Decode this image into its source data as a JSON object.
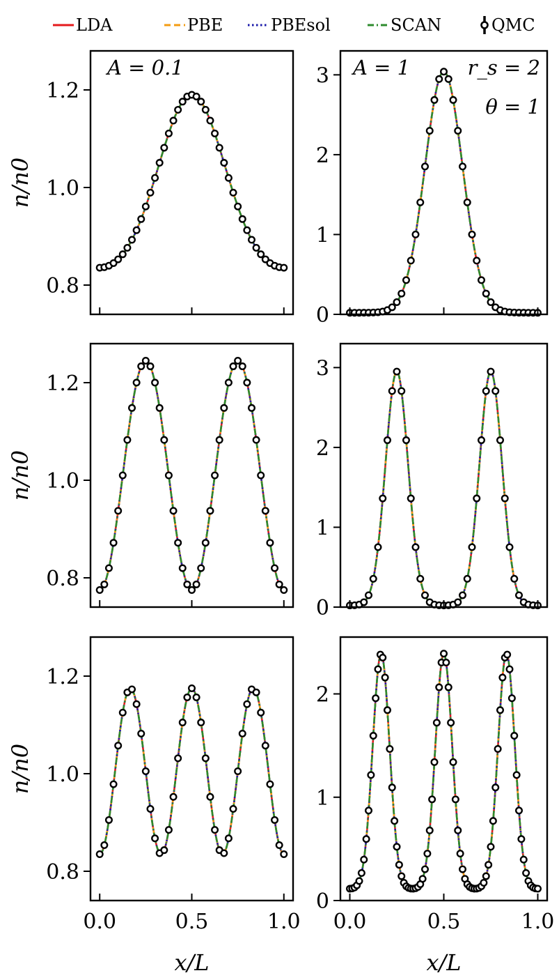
{
  "chart_data": {
    "type": "line",
    "legend": {
      "placement": "top",
      "entries": [
        {
          "label": "LDA",
          "style": "solid",
          "color": "#e41a1c"
        },
        {
          "label": "PBE",
          "style": "dashed",
          "color": "#f39c12"
        },
        {
          "label": "PBEsol",
          "style": "dotted",
          "color": "#1a1aaa"
        },
        {
          "label": "SCAN",
          "style": "dashdot",
          "color": "#2e8b2e"
        },
        {
          "label": "QMC",
          "style": "markers",
          "color": "#000000"
        }
      ]
    },
    "x_axis_label": "x/L",
    "y_axis_label": "n/n0",
    "panels": [
      {
        "row": 0,
        "col": 0,
        "model": "gauss",
        "n": 1,
        "amp": 0.37,
        "base": 0.82,
        "width": 0.18,
        "xlim": [
          0,
          1
        ],
        "ylim": [
          0.74,
          1.28
        ],
        "yticks": [
          0.8,
          1.0,
          1.2
        ],
        "ytick_labels": [
          "0.8",
          "1.0",
          "1.2"
        ],
        "annotations": [
          "A = 0.1"
        ],
        "qmc_points": 41
      },
      {
        "row": 0,
        "col": 1,
        "model": "gauss",
        "n": 1,
        "amp": 3.02,
        "base": 0.02,
        "width": 0.1,
        "xlim": [
          0,
          1
        ],
        "ylim": [
          0,
          3.3
        ],
        "yticks": [
          0,
          1,
          2,
          3
        ],
        "ytick_labels": [
          "0",
          "1",
          "2",
          "3"
        ],
        "annotations": [
          "A = 1",
          "r_s = 2",
          "θ = 1"
        ],
        "qmc_points": 41
      },
      {
        "row": 1,
        "col": 0,
        "model": "cos",
        "n": 2,
        "amp": 0.47,
        "base": 0.775,
        "xlim": [
          0,
          1
        ],
        "ylim": [
          0.74,
          1.28
        ],
        "yticks": [
          0.8,
          1.0,
          1.2
        ],
        "ytick_labels": [
          "0.8",
          "1.0",
          "1.2"
        ],
        "annotations": [],
        "qmc_points": 41
      },
      {
        "row": 1,
        "col": 1,
        "model": "gauss",
        "n": 2,
        "amp": 2.93,
        "base": 0.02,
        "width": 0.06,
        "xlim": [
          0,
          1
        ],
        "ylim": [
          0,
          3.3
        ],
        "yticks": [
          0,
          1,
          2,
          3
        ],
        "ytick_labels": [
          "0",
          "1",
          "2",
          "3"
        ],
        "annotations": [],
        "qmc_points": 41
      },
      {
        "row": 2,
        "col": 0,
        "model": "cos",
        "n": 3,
        "amp": 0.34,
        "base": 0.835,
        "xlim": [
          0,
          1
        ],
        "ylim": [
          0.74,
          1.28
        ],
        "yticks": [
          0.8,
          1.0,
          1.2
        ],
        "ytick_labels": [
          "0.8",
          "1.0",
          "1.2"
        ],
        "annotations": [],
        "qmc_points": 41
      },
      {
        "row": 2,
        "col": 1,
        "model": "gauss",
        "n": 3,
        "amp": 2.28,
        "base": 0.11,
        "width": 0.045,
        "xlim": [
          0,
          1
        ],
        "ylim": [
          0,
          2.55
        ],
        "yticks": [
          0,
          1,
          2
        ],
        "ytick_labels": [
          "0",
          "1",
          "2"
        ],
        "annotations": [],
        "qmc_points": 81
      }
    ],
    "xticks": [
      0.0,
      0.5,
      1.0
    ],
    "xtick_labels": [
      "0.0",
      "0.5",
      "1.0"
    ]
  }
}
